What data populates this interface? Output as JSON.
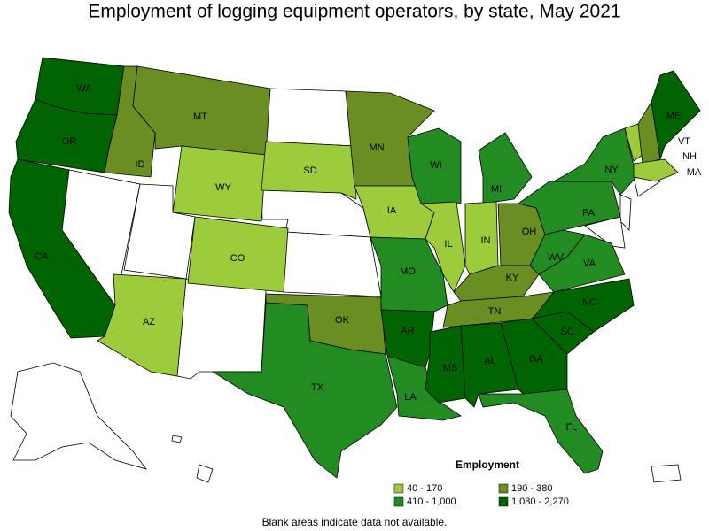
{
  "title": "Employment of logging equipment operators, by state, May 2021",
  "states": [
    {
      "label": "WA",
      "legend": 3
    },
    {
      "label": "OR",
      "legend": 3
    },
    {
      "label": "CA",
      "legend": 3
    },
    {
      "label": "ID",
      "legend": 1
    },
    {
      "label": "MT",
      "legend": 1
    },
    {
      "label": "WY",
      "legend": 0
    },
    {
      "label": "CO",
      "legend": 0
    },
    {
      "label": "AZ",
      "legend": 0
    },
    {
      "label": "SD",
      "legend": 0
    },
    {
      "label": "OK",
      "legend": 1
    },
    {
      "label": "TX",
      "legend": 2
    },
    {
      "label": "MN",
      "legend": 1
    },
    {
      "label": "IA",
      "legend": 0
    },
    {
      "label": "MO",
      "legend": 2
    },
    {
      "label": "AR",
      "legend": 3
    },
    {
      "label": "LA",
      "legend": 2
    },
    {
      "label": "WI",
      "legend": 2
    },
    {
      "label": "IL",
      "legend": 0
    },
    {
      "label": "MI",
      "legend": 2
    },
    {
      "label": "IN",
      "legend": 0
    },
    {
      "label": "OH",
      "legend": 1
    },
    {
      "label": "KY",
      "legend": 1
    },
    {
      "label": "TN",
      "legend": 1
    },
    {
      "label": "MS",
      "legend": 3
    },
    {
      "label": "AL",
      "legend": 3
    },
    {
      "label": "GA",
      "legend": 3
    },
    {
      "label": "FL",
      "legend": 2
    },
    {
      "label": "SC",
      "legend": 3
    },
    {
      "label": "NC",
      "legend": 3
    },
    {
      "label": "VA",
      "legend": 2
    },
    {
      "label": "WV",
      "legend": 2
    },
    {
      "label": "PA",
      "legend": 2
    },
    {
      "label": "NY",
      "legend": 2
    },
    {
      "label": "VT",
      "legend": 0
    },
    {
      "label": "NH",
      "legend": 1
    },
    {
      "label": "MA",
      "legend": 0
    },
    {
      "label": "ME",
      "legend": 3
    }
  ],
  "legend": {
    "title": "Employment",
    "items": [
      {
        "label": "40 - 170",
        "color": "#9ccc3c"
      },
      {
        "label": "190 - 380",
        "color": "#6b8e23"
      },
      {
        "label": "410 - 1,000",
        "color": "#228b22"
      },
      {
        "label": "1,080 - 2,270",
        "color": "#006400"
      }
    ]
  },
  "footnote": "Blank areas indicate data not available."
}
